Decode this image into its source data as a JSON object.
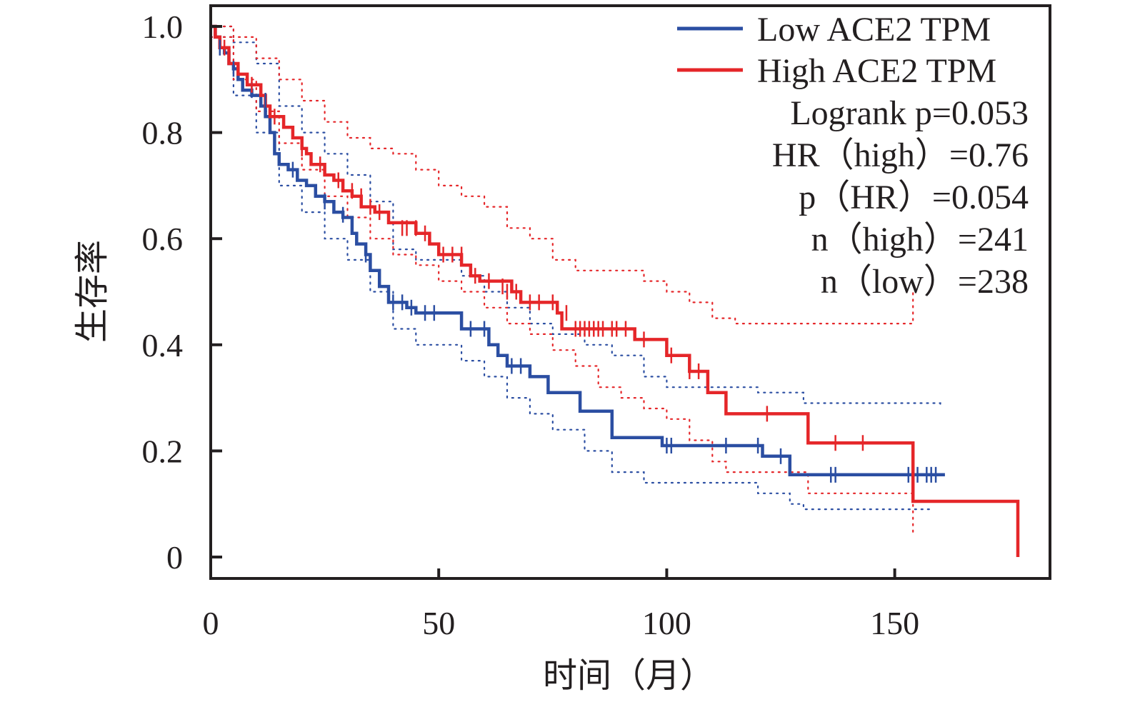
{
  "chart_data": {
    "type": "line",
    "subtype": "kaplan-meier",
    "title": "",
    "xlabel": "时间（月）",
    "ylabel": "生存率",
    "xlim": [
      0,
      180
    ],
    "ylim": [
      0,
      1.0
    ],
    "xticks": [
      "0",
      "50",
      "100",
      "150"
    ],
    "xtick_values": [
      0,
      50,
      100,
      150
    ],
    "yticks": [
      "0",
      "0.2",
      "0.4",
      "0.6",
      "0.8",
      "1.0"
    ],
    "ytick_values": [
      0,
      0.2,
      0.4,
      0.6,
      0.8,
      1.0
    ],
    "grid": false,
    "legend_position": "top-right",
    "series": [
      {
        "name": "Low ACE2 TPM",
        "color": "#2b4ea2",
        "steps": [
          [
            0,
            1.0
          ],
          [
            1,
            0.98
          ],
          [
            2,
            0.96
          ],
          [
            3,
            0.95
          ],
          [
            4,
            0.93
          ],
          [
            5,
            0.92
          ],
          [
            6,
            0.9
          ],
          [
            7,
            0.88
          ],
          [
            9,
            0.87
          ],
          [
            11,
            0.85
          ],
          [
            12,
            0.83
          ],
          [
            13,
            0.8
          ],
          [
            14,
            0.76
          ],
          [
            15,
            0.74
          ],
          [
            17,
            0.73
          ],
          [
            19,
            0.71
          ],
          [
            21,
            0.7
          ],
          [
            23,
            0.68
          ],
          [
            25,
            0.67
          ],
          [
            27,
            0.65
          ],
          [
            29,
            0.64
          ],
          [
            31,
            0.61
          ],
          [
            32,
            0.59
          ],
          [
            34,
            0.57
          ],
          [
            35,
            0.54
          ],
          [
            37,
            0.51
          ],
          [
            39,
            0.48
          ],
          [
            43,
            0.47
          ],
          [
            45,
            0.46
          ],
          [
            55,
            0.43
          ],
          [
            61,
            0.4
          ],
          [
            63,
            0.38
          ],
          [
            65,
            0.36
          ],
          [
            70,
            0.34
          ],
          [
            74,
            0.31
          ],
          [
            81,
            0.275
          ],
          [
            88,
            0.225
          ],
          [
            99,
            0.21
          ],
          [
            121,
            0.19
          ],
          [
            127,
            0.155
          ],
          [
            161,
            0.155
          ]
        ],
        "censored": [
          [
            2,
            0.96
          ],
          [
            5,
            0.92
          ],
          [
            9,
            0.88
          ],
          [
            12,
            0.86
          ],
          [
            18,
            0.73
          ],
          [
            25,
            0.67
          ],
          [
            29,
            0.645
          ],
          [
            34,
            0.57
          ],
          [
            40,
            0.48
          ],
          [
            42,
            0.48
          ],
          [
            44,
            0.47
          ],
          [
            47,
            0.46
          ],
          [
            49,
            0.46
          ],
          [
            57,
            0.43
          ],
          [
            60,
            0.43
          ],
          [
            66,
            0.36
          ],
          [
            68,
            0.36
          ],
          [
            100,
            0.21
          ],
          [
            101,
            0.21
          ],
          [
            113,
            0.21
          ],
          [
            120,
            0.21
          ],
          [
            125,
            0.19
          ],
          [
            136,
            0.155
          ],
          [
            137,
            0.155
          ],
          [
            153,
            0.155
          ],
          [
            155,
            0.155
          ],
          [
            157,
            0.155
          ],
          [
            158,
            0.155
          ],
          [
            159,
            0.155
          ]
        ],
        "ci_upper": [
          [
            0,
            1.0
          ],
          [
            5,
            0.97
          ],
          [
            10,
            0.93
          ],
          [
            15,
            0.85
          ],
          [
            20,
            0.8
          ],
          [
            25,
            0.76
          ],
          [
            30,
            0.72
          ],
          [
            35,
            0.67
          ],
          [
            40,
            0.58
          ],
          [
            45,
            0.56
          ],
          [
            55,
            0.53
          ],
          [
            60,
            0.5
          ],
          [
            65,
            0.47
          ],
          [
            70,
            0.44
          ],
          [
            75,
            0.42
          ],
          [
            82,
            0.4
          ],
          [
            88,
            0.38
          ],
          [
            95,
            0.34
          ],
          [
            100,
            0.32
          ],
          [
            110,
            0.32
          ],
          [
            120,
            0.31
          ],
          [
            130,
            0.29
          ],
          [
            160,
            0.285
          ]
        ],
        "ci_lower": [
          [
            0,
            0.98
          ],
          [
            5,
            0.87
          ],
          [
            10,
            0.8
          ],
          [
            15,
            0.7
          ],
          [
            20,
            0.65
          ],
          [
            25,
            0.6
          ],
          [
            30,
            0.56
          ],
          [
            35,
            0.5
          ],
          [
            40,
            0.43
          ],
          [
            45,
            0.4
          ],
          [
            55,
            0.37
          ],
          [
            60,
            0.34
          ],
          [
            65,
            0.3
          ],
          [
            70,
            0.27
          ],
          [
            75,
            0.24
          ],
          [
            82,
            0.2
          ],
          [
            88,
            0.16
          ],
          [
            95,
            0.14
          ],
          [
            100,
            0.14
          ],
          [
            110,
            0.14
          ],
          [
            120,
            0.12
          ],
          [
            127,
            0.1
          ],
          [
            130,
            0.09
          ],
          [
            158,
            0.09
          ]
        ]
      },
      {
        "name": "High ACE2 TPM",
        "color": "#e52629",
        "steps": [
          [
            0,
            1.0
          ],
          [
            1,
            0.98
          ],
          [
            2,
            0.96
          ],
          [
            4,
            0.93
          ],
          [
            6,
            0.91
          ],
          [
            8,
            0.89
          ],
          [
            11,
            0.87
          ],
          [
            12,
            0.85
          ],
          [
            13,
            0.83
          ],
          [
            16,
            0.81
          ],
          [
            18,
            0.79
          ],
          [
            20,
            0.77
          ],
          [
            21,
            0.76
          ],
          [
            22,
            0.74
          ],
          [
            25,
            0.72
          ],
          [
            27,
            0.71
          ],
          [
            29,
            0.69
          ],
          [
            31,
            0.68
          ],
          [
            33,
            0.66
          ],
          [
            36,
            0.65
          ],
          [
            39,
            0.63
          ],
          [
            45,
            0.61
          ],
          [
            48,
            0.59
          ],
          [
            50,
            0.57
          ],
          [
            55,
            0.55
          ],
          [
            57,
            0.53
          ],
          [
            59,
            0.52
          ],
          [
            66,
            0.5
          ],
          [
            68,
            0.48
          ],
          [
            76,
            0.46
          ],
          [
            77,
            0.43
          ],
          [
            93,
            0.41
          ],
          [
            100,
            0.38
          ],
          [
            105,
            0.35
          ],
          [
            109,
            0.31
          ],
          [
            113,
            0.27
          ],
          [
            131,
            0.215
          ],
          [
            154,
            0.105
          ],
          [
            177,
            0.105
          ],
          [
            177,
            0.0
          ]
        ],
        "censored": [
          [
            3,
            0.96
          ],
          [
            9,
            0.89
          ],
          [
            14,
            0.83
          ],
          [
            20,
            0.77
          ],
          [
            24,
            0.74
          ],
          [
            28,
            0.71
          ],
          [
            31,
            0.69
          ],
          [
            33,
            0.68
          ],
          [
            35,
            0.66
          ],
          [
            37,
            0.65
          ],
          [
            42,
            0.62
          ],
          [
            43,
            0.62
          ],
          [
            45,
            0.62
          ],
          [
            47,
            0.61
          ],
          [
            51,
            0.57
          ],
          [
            53,
            0.57
          ],
          [
            55,
            0.57
          ],
          [
            58,
            0.53
          ],
          [
            61,
            0.52
          ],
          [
            64,
            0.51
          ],
          [
            65,
            0.5
          ],
          [
            67,
            0.5
          ],
          [
            70,
            0.48
          ],
          [
            72,
            0.48
          ],
          [
            75,
            0.48
          ],
          [
            78,
            0.46
          ],
          [
            80,
            0.43
          ],
          [
            81,
            0.43
          ],
          [
            82,
            0.43
          ],
          [
            83,
            0.43
          ],
          [
            84,
            0.43
          ],
          [
            85,
            0.43
          ],
          [
            86,
            0.43
          ],
          [
            88,
            0.43
          ],
          [
            89,
            0.43
          ],
          [
            91,
            0.43
          ],
          [
            95,
            0.41
          ],
          [
            101,
            0.38
          ],
          [
            105,
            0.35
          ],
          [
            107,
            0.35
          ],
          [
            122,
            0.27
          ],
          [
            137,
            0.215
          ],
          [
            143,
            0.215
          ]
        ],
        "ci_upper": [
          [
            0,
            1.0
          ],
          [
            5,
            0.98
          ],
          [
            10,
            0.94
          ],
          [
            15,
            0.9
          ],
          [
            20,
            0.86
          ],
          [
            25,
            0.82
          ],
          [
            30,
            0.79
          ],
          [
            35,
            0.77
          ],
          [
            40,
            0.76
          ],
          [
            45,
            0.73
          ],
          [
            50,
            0.7
          ],
          [
            55,
            0.68
          ],
          [
            60,
            0.66
          ],
          [
            65,
            0.62
          ],
          [
            70,
            0.6
          ],
          [
            75,
            0.56
          ],
          [
            80,
            0.54
          ],
          [
            90,
            0.54
          ],
          [
            95,
            0.52
          ],
          [
            100,
            0.5
          ],
          [
            105,
            0.48
          ],
          [
            110,
            0.45
          ],
          [
            115,
            0.44
          ],
          [
            130,
            0.44
          ],
          [
            154,
            0.45
          ],
          [
            154,
            0.5
          ]
        ],
        "ci_lower": [
          [
            0,
            0.98
          ],
          [
            5,
            0.9
          ],
          [
            10,
            0.84
          ],
          [
            15,
            0.78
          ],
          [
            20,
            0.73
          ],
          [
            25,
            0.68
          ],
          [
            30,
            0.64
          ],
          [
            35,
            0.6
          ],
          [
            40,
            0.57
          ],
          [
            45,
            0.55
          ],
          [
            50,
            0.52
          ],
          [
            55,
            0.5
          ],
          [
            60,
            0.47
          ],
          [
            65,
            0.44
          ],
          [
            70,
            0.42
          ],
          [
            75,
            0.39
          ],
          [
            80,
            0.36
          ],
          [
            85,
            0.32
          ],
          [
            90,
            0.3
          ],
          [
            95,
            0.28
          ],
          [
            100,
            0.26
          ],
          [
            105,
            0.22
          ],
          [
            110,
            0.18
          ],
          [
            113,
            0.16
          ],
          [
            131,
            0.12
          ],
          [
            154,
            0.08
          ],
          [
            154,
            0.04
          ]
        ]
      }
    ],
    "annotations": [
      "Logrank p=0.053",
      "HR（high）=0.76",
      "p（HR）=0.054",
      "n（high）=241",
      "n（low）=238"
    ]
  }
}
